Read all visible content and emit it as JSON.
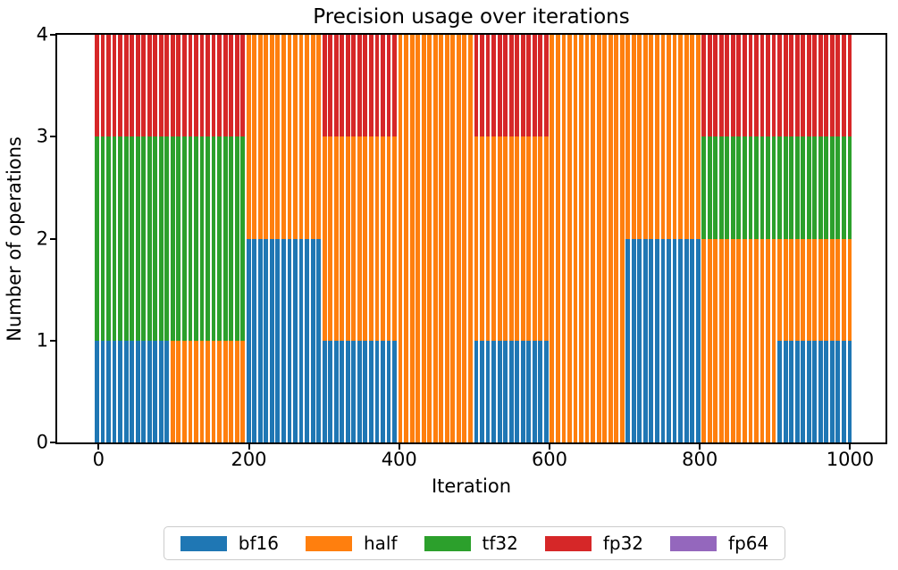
{
  "chart_data": {
    "type": "bar",
    "stacked": true,
    "title": "Precision usage over iterations",
    "xlabel": "Iteration",
    "ylabel": "Number of operations",
    "xlim": [
      -55,
      1047
    ],
    "ylim": [
      0,
      4
    ],
    "xticks": [
      0,
      200,
      400,
      600,
      800,
      1000
    ],
    "yticks": [
      0,
      1,
      2,
      3,
      4
    ],
    "grid": false,
    "legend_position": "bottom-center-outside",
    "bars_per_segment": 13,
    "series": [
      {
        "name": "bf16",
        "color": "#1f77b4"
      },
      {
        "name": "half",
        "color": "#ff7f0e"
      },
      {
        "name": "tf32",
        "color": "#2ca02c"
      },
      {
        "name": "fp32",
        "color": "#d62728"
      },
      {
        "name": "fp64",
        "color": "#9467bd"
      }
    ],
    "segments": [
      {
        "x_start": 0,
        "x_end": 100,
        "counts": [
          1,
          0,
          2,
          1,
          0
        ]
      },
      {
        "x_start": 100,
        "x_end": 200,
        "counts": [
          0,
          1,
          2,
          1,
          0
        ]
      },
      {
        "x_start": 200,
        "x_end": 300,
        "counts": [
          2,
          2,
          0,
          0,
          0
        ]
      },
      {
        "x_start": 300,
        "x_end": 400,
        "counts": [
          1,
          2,
          0,
          1,
          0
        ]
      },
      {
        "x_start": 400,
        "x_end": 500,
        "counts": [
          0,
          4,
          0,
          0,
          0
        ]
      },
      {
        "x_start": 500,
        "x_end": 600,
        "counts": [
          1,
          2,
          0,
          1,
          0
        ]
      },
      {
        "x_start": 600,
        "x_end": 700,
        "counts": [
          0,
          4,
          0,
          0,
          0
        ]
      },
      {
        "x_start": 700,
        "x_end": 800,
        "counts": [
          2,
          2,
          0,
          0,
          0
        ]
      },
      {
        "x_start": 800,
        "x_end": 900,
        "counts": [
          0,
          2,
          1,
          1,
          0
        ]
      },
      {
        "x_start": 900,
        "x_end": 1000,
        "counts": [
          1,
          1,
          1,
          1,
          0
        ]
      }
    ]
  }
}
